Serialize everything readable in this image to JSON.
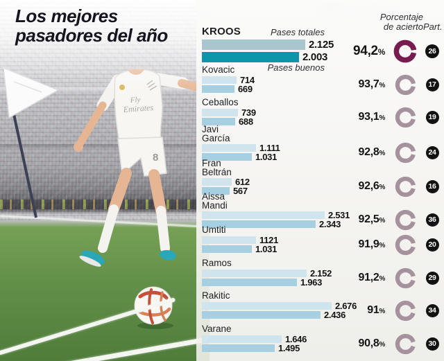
{
  "title": {
    "line1": "Los mejores",
    "line2": "pasadores del año"
  },
  "headers": {
    "pases_totales": "Pases totales",
    "pases_buenos": "Pases buenos",
    "porcentaje_line1": "Porcentaje",
    "porcentaje_line2": "de acierto",
    "part": "Part."
  },
  "percent_sign": "%",
  "photo": {
    "jersey_sponsor": "Fly Emirates",
    "jersey_number": "8"
  },
  "colors": {
    "bar_totales": "#d0e4ee",
    "bar_buenos": "#a6cfe2",
    "kroos_bar_totales": "#a9c6ce",
    "kroos_bar_buenos": "#0d95aa",
    "donut_highlight": "#771c4f",
    "donut_normal": "#a5929c",
    "badge_bg": "#121212",
    "title_color": "#15151f"
  },
  "chart_data": {
    "type": "bar",
    "orientation": "horizontal",
    "title": "Los mejores pasadores del año",
    "series_labels": [
      "Pases totales",
      "Pases buenos"
    ],
    "value_axis_max": 2800,
    "players": [
      {
        "name": "KROOS",
        "name_lines": [
          "KROOS"
        ],
        "totales": 2125,
        "buenos": 2003,
        "totales_label": "2.125",
        "buenos_label": "2.003",
        "pct": 94.2,
        "pct_label": "94,2",
        "part": "26",
        "highlight": true
      },
      {
        "name": "Kovacic",
        "name_lines": [
          "Kovacic"
        ],
        "totales": 714,
        "buenos": 669,
        "totales_label": "714",
        "buenos_label": "669",
        "pct": 93.7,
        "pct_label": "93,7",
        "part": "17",
        "highlight": false
      },
      {
        "name": "Ceballos",
        "name_lines": [
          "Ceballos"
        ],
        "totales": 739,
        "buenos": 688,
        "totales_label": "739",
        "buenos_label": "688",
        "pct": 93.1,
        "pct_label": "93,1",
        "part": "19",
        "highlight": false
      },
      {
        "name": "Javi García",
        "name_lines": [
          "Javi",
          "García"
        ],
        "totales": 1111,
        "buenos": 1031,
        "totales_label": "1.111",
        "buenos_label": "1.031",
        "pct": 92.8,
        "pct_label": "92,8",
        "part": "24",
        "highlight": false
      },
      {
        "name": "Fran Beltrán",
        "name_lines": [
          "Fran",
          "Beltrán"
        ],
        "totales": 612,
        "buenos": 567,
        "totales_label": "612",
        "buenos_label": "567",
        "pct": 92.6,
        "pct_label": "92,6",
        "part": "16",
        "highlight": false
      },
      {
        "name": "Aissa Mandi",
        "name_lines": [
          "Aissa",
          "Mandi"
        ],
        "totales": 2531,
        "buenos": 2343,
        "totales_label": "2.531",
        "buenos_label": "2.343",
        "pct": 92.5,
        "pct_label": "92,5",
        "part": "36",
        "highlight": false
      },
      {
        "name": "Umtiti",
        "name_lines": [
          "Umtiti"
        ],
        "totales": 1121,
        "buenos": 1031,
        "totales_label": "1121",
        "buenos_label": "1.031",
        "pct": 91.9,
        "pct_label": "91,9",
        "part": "20",
        "highlight": false
      },
      {
        "name": "Ramos",
        "name_lines": [
          "Ramos"
        ],
        "totales": 2152,
        "buenos": 1963,
        "totales_label": "2.152",
        "buenos_label": "1.963",
        "pct": 91.2,
        "pct_label": "91,2",
        "part": "29",
        "highlight": false
      },
      {
        "name": "Rakitic",
        "name_lines": [
          "Rakitic"
        ],
        "totales": 2676,
        "buenos": 2436,
        "totales_label": "2.676",
        "buenos_label": "2.436",
        "pct": 91.0,
        "pct_label": "91",
        "part": "34",
        "highlight": false
      },
      {
        "name": "Varane",
        "name_lines": [
          "Varane"
        ],
        "totales": 1646,
        "buenos": 1495,
        "totales_label": "1.646",
        "buenos_label": "1.495",
        "pct": 90.8,
        "pct_label": "90,8",
        "part": "30",
        "highlight": false
      }
    ]
  }
}
